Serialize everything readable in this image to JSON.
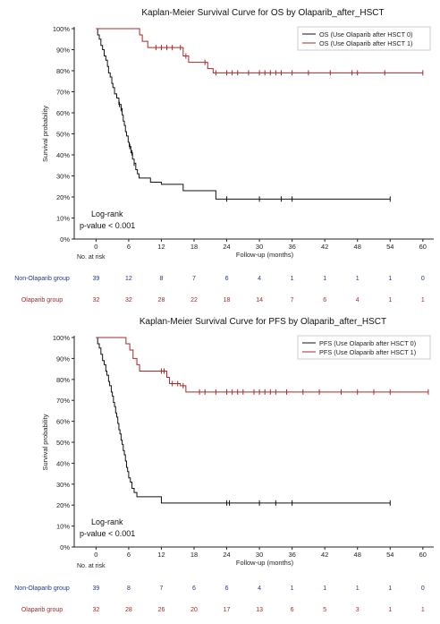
{
  "chart_data": [
    {
      "type": "line",
      "title": "Kaplan-Meier Survival Curve for OS by Olaparib_after_HSCT",
      "xlabel": "Follow-up (months)",
      "ylabel": "Survival probability",
      "xlim": [
        -4,
        62
      ],
      "ylim": [
        0,
        1.0
      ],
      "xticks": [
        0,
        6,
        12,
        18,
        24,
        30,
        36,
        42,
        48,
        54,
        60
      ],
      "yticks": [
        "0%",
        "10%",
        "20%",
        "30%",
        "40%",
        "50%",
        "60%",
        "70%",
        "80%",
        "90%",
        "100%"
      ],
      "legend_position": "top-right",
      "annotation": [
        "Log-rank",
        "p-value < 0.001"
      ],
      "series": [
        {
          "name": "OS (Use Olaparib after HSCT 0)",
          "color": "#111111",
          "steps": [
            [
              0,
              1.0
            ],
            [
              0.3,
              0.97
            ],
            [
              0.6,
              0.95
            ],
            [
              0.9,
              0.92
            ],
            [
              1.2,
              0.9
            ],
            [
              1.5,
              0.87
            ],
            [
              1.8,
              0.85
            ],
            [
              2.1,
              0.82
            ],
            [
              2.3,
              0.79
            ],
            [
              2.6,
              0.77
            ],
            [
              2.9,
              0.74
            ],
            [
              3.1,
              0.72
            ],
            [
              3.4,
              0.69
            ],
            [
              3.8,
              0.67
            ],
            [
              4.2,
              0.64
            ],
            [
              4.6,
              0.62
            ],
            [
              4.8,
              0.59
            ],
            [
              5.0,
              0.56
            ],
            [
              5.2,
              0.54
            ],
            [
              5.4,
              0.51
            ],
            [
              5.6,
              0.49
            ],
            [
              5.9,
              0.46
            ],
            [
              6.1,
              0.44
            ],
            [
              6.4,
              0.41
            ],
            [
              6.7,
              0.38
            ],
            [
              7.0,
              0.36
            ],
            [
              7.3,
              0.33
            ],
            [
              7.6,
              0.31
            ],
            [
              7.9,
              0.29
            ],
            [
              10.0,
              0.27
            ],
            [
              12.0,
              0.26
            ],
            [
              16.0,
              0.23
            ],
            [
              22.0,
              0.19
            ],
            [
              54.0,
              0.19
            ]
          ],
          "censor_x": [
            4.3,
            4.6,
            6.2,
            6.6,
            7.0,
            24.0,
            30.0,
            34.0,
            36.0,
            54.0
          ]
        },
        {
          "name": "OS (Use Olaparib after HSCT 1)",
          "color": "#a52a2a",
          "steps": [
            [
              0,
              1.0
            ],
            [
              8.0,
              0.97
            ],
            [
              8.5,
              0.94
            ],
            [
              9.5,
              0.91
            ],
            [
              16.0,
              0.87
            ],
            [
              17.0,
              0.84
            ],
            [
              20.5,
              0.81
            ],
            [
              21.5,
              0.79
            ],
            [
              60.0,
              0.79
            ]
          ],
          "censor_x": [
            11.0,
            12.0,
            13.0,
            14.0,
            15.5,
            16.5,
            20.0,
            22.0,
            24.0,
            25.0,
            26.0,
            28.0,
            30.0,
            31.0,
            32.0,
            33.0,
            34.0,
            36.0,
            39.0,
            43.0,
            47.0,
            48.0,
            53.0,
            60.0
          ]
        }
      ],
      "risk_table": {
        "header": "No. at risk",
        "rows": [
          {
            "label": "Non-Olaparib group",
            "color": "#1f3a8a",
            "values": [
              "39",
              "12",
              "8",
              "7",
              "6",
              "4",
              "1",
              "1",
              "1",
              "1",
              "0"
            ]
          },
          {
            "label": "Olaparib group",
            "color": "#a52a2a",
            "values": [
              "32",
              "32",
              "28",
              "22",
              "18",
              "14",
              "7",
              "6",
              "4",
              "1",
              "1"
            ]
          }
        ]
      }
    },
    {
      "type": "line",
      "title": "Kaplan-Meier Survival Curve for PFS by Olaparib_after_HSCT",
      "xlabel": "Follow-up (months)",
      "ylabel": "Survival probability",
      "xlim": [
        -4,
        62
      ],
      "ylim": [
        0,
        1.0
      ],
      "xticks": [
        0,
        6,
        12,
        18,
        24,
        30,
        36,
        42,
        48,
        54,
        60
      ],
      "yticks": [
        "0%",
        "10%",
        "20%",
        "30%",
        "40%",
        "50%",
        "60%",
        "70%",
        "80%",
        "90%",
        "100%"
      ],
      "legend_position": "top-right",
      "annotation": [
        "Log-rank",
        "p-value < 0.001"
      ],
      "series": [
        {
          "name": "PFS (Use Olaparib after HSCT 0)",
          "color": "#111111",
          "steps": [
            [
              0,
              1.0
            ],
            [
              0.3,
              0.97
            ],
            [
              0.6,
              0.95
            ],
            [
              0.9,
              0.92
            ],
            [
              1.2,
              0.89
            ],
            [
              1.5,
              0.87
            ],
            [
              1.8,
              0.84
            ],
            [
              2.0,
              0.82
            ],
            [
              2.3,
              0.79
            ],
            [
              2.5,
              0.77
            ],
            [
              2.8,
              0.74
            ],
            [
              3.0,
              0.72
            ],
            [
              3.2,
              0.69
            ],
            [
              3.4,
              0.67
            ],
            [
              3.6,
              0.64
            ],
            [
              3.8,
              0.62
            ],
            [
              4.0,
              0.59
            ],
            [
              4.2,
              0.56
            ],
            [
              4.4,
              0.54
            ],
            [
              4.6,
              0.51
            ],
            [
              4.8,
              0.49
            ],
            [
              5.0,
              0.46
            ],
            [
              5.2,
              0.44
            ],
            [
              5.4,
              0.41
            ],
            [
              5.6,
              0.38
            ],
            [
              5.8,
              0.36
            ],
            [
              6.0,
              0.33
            ],
            [
              6.3,
              0.31
            ],
            [
              6.6,
              0.28
            ],
            [
              7.0,
              0.26
            ],
            [
              7.5,
              0.24
            ],
            [
              12.0,
              0.21
            ],
            [
              54.0,
              0.21
            ]
          ],
          "censor_x": [
            24.0,
            24.5,
            30.0,
            33.0,
            36.0,
            54.0
          ]
        },
        {
          "name": "PFS (Use Olaparib after HSCT 1)",
          "color": "#a52a2a",
          "steps": [
            [
              0,
              1.0
            ],
            [
              5.5,
              0.97
            ],
            [
              6.2,
              0.94
            ],
            [
              6.8,
              0.9
            ],
            [
              7.5,
              0.87
            ],
            [
              8.0,
              0.84
            ],
            [
              13.0,
              0.81
            ],
            [
              13.5,
              0.78
            ],
            [
              15.5,
              0.77
            ],
            [
              16.5,
              0.74
            ],
            [
              61.0,
              0.74
            ]
          ],
          "censor_x": [
            12.0,
            12.5,
            14.0,
            15.0,
            16.0,
            19.0,
            20.0,
            22.0,
            24.0,
            25.0,
            26.0,
            27.0,
            29.0,
            30.0,
            31.0,
            32.0,
            33.0,
            35.0,
            38.0,
            41.0,
            45.0,
            48.0,
            51.0,
            54.0,
            61.0
          ]
        }
      ],
      "risk_table": {
        "header": "No. at risk",
        "rows": [
          {
            "label": "Non-Olaparib group",
            "color": "#1f3a8a",
            "values": [
              "39",
              "8",
              "7",
              "6",
              "6",
              "4",
              "1",
              "1",
              "1",
              "1",
              "0"
            ]
          },
          {
            "label": "Olaparib group",
            "color": "#a52a2a",
            "values": [
              "32",
              "28",
              "26",
              "20",
              "17",
              "13",
              "6",
              "5",
              "3",
              "1",
              "1"
            ]
          }
        ]
      }
    }
  ]
}
